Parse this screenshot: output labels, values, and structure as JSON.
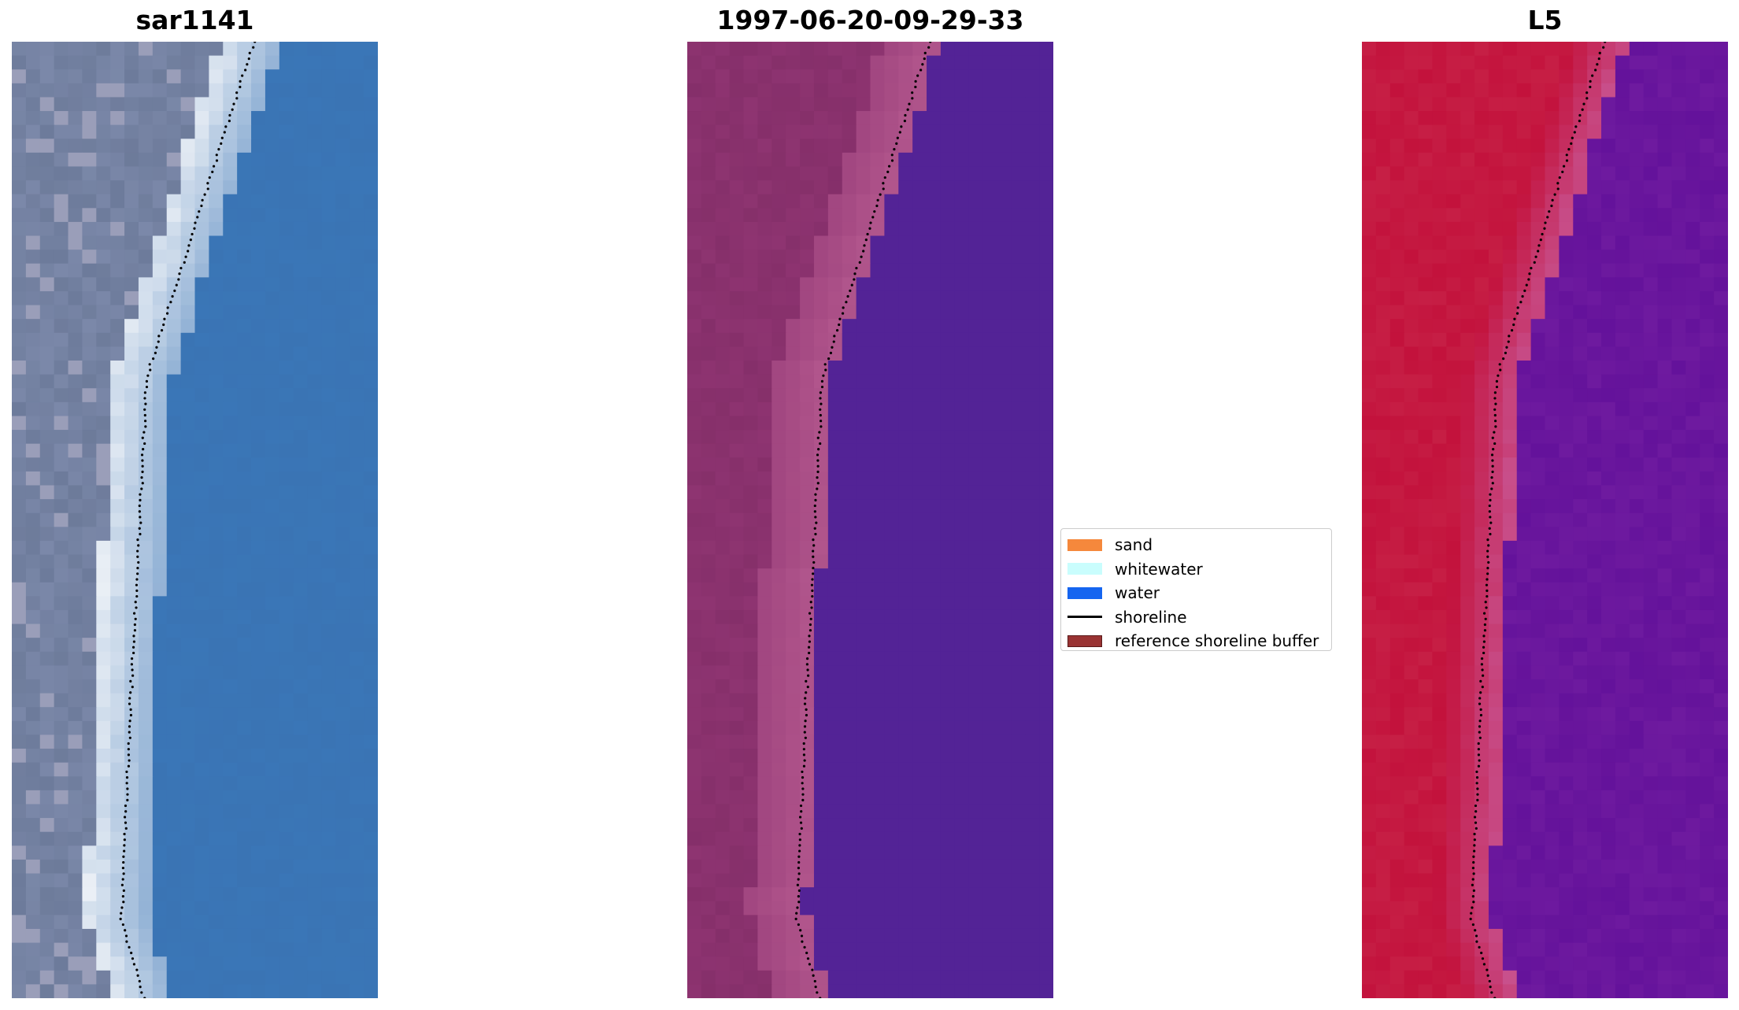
{
  "panels": [
    {
      "id": "rgb",
      "title": "sar1141"
    },
    {
      "id": "classified",
      "title": "1997-06-20-09-29-33"
    },
    {
      "id": "index",
      "title": "L5"
    }
  ],
  "legend": {
    "items": [
      {
        "type": "patch",
        "label": "sand",
        "color": "#f5883c"
      },
      {
        "type": "patch",
        "label": "whitewater",
        "color": "#c9fdfd"
      },
      {
        "type": "patch",
        "label": "water",
        "color": "#1565f0"
      },
      {
        "type": "line",
        "label": "shoreline",
        "color": "#000000"
      },
      {
        "type": "patch",
        "label": "reference shoreline buffer",
        "color": "#993333"
      }
    ]
  },
  "colors": {
    "rgb_water": "#3a74b4",
    "rgb_land": "#7b88a9",
    "rgb_whitewater": "#eef2f7",
    "classified_water": "#532396",
    "classified_land": "#8e3471",
    "classified_buffer": "#b65a90",
    "index_water": "#6e1a9f",
    "index_land": "#c3123c",
    "index_buffer": "#c8528f",
    "shoreline_points": "#000000"
  }
}
